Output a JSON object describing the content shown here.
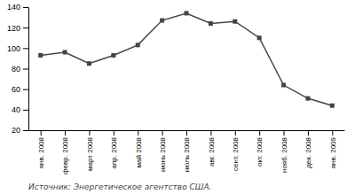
{
  "chart_data": {
    "type": "line",
    "categories": [
      "янв. 2008",
      "февр. 2008",
      "март 2008",
      "апр. 2008",
      "май 2008",
      "июнь 2008",
      "июль 2008",
      "авг. 2008",
      "сент. 2008",
      "окт. 2008",
      "нояб. 2008",
      "дек. 2008",
      "янв. 2009"
    ],
    "values": [
      93,
      96,
      85,
      93,
      103,
      127,
      134,
      124,
      126,
      110,
      64,
      51,
      44
    ],
    "color": "#444444",
    "marker": "square",
    "ylim": [
      20,
      140
    ],
    "yticks": [
      20,
      40,
      60,
      80,
      100,
      120,
      140
    ],
    "grid": false,
    "annotations": [
      "Источник: Энергетическое агентство США."
    ]
  }
}
